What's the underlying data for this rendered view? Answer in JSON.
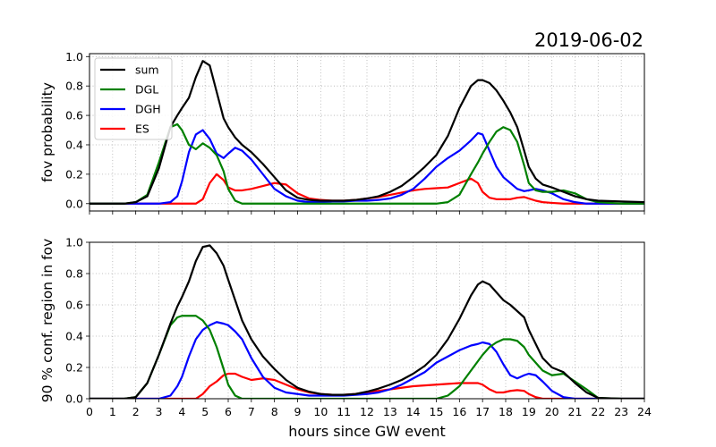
{
  "figure": {
    "date_label": "2019-06-02",
    "xlabel": "hours since GW event"
  },
  "chart_data": [
    {
      "type": "line",
      "ylabel": "fov probability",
      "xlim": [
        0,
        24
      ],
      "ylim": [
        -0.05,
        1.02
      ],
      "yticks": [
        0.0,
        0.2,
        0.4,
        0.6,
        0.8,
        1.0
      ],
      "grid": true,
      "legend": "top-left",
      "x": [
        0,
        1,
        1.5,
        2,
        2.5,
        3,
        3.5,
        3.8,
        4,
        4.3,
        4.6,
        4.9,
        5.2,
        5.5,
        5.8,
        6,
        6.3,
        6.6,
        7,
        7.5,
        8,
        8.5,
        9,
        9.5,
        10,
        10.5,
        11,
        11.5,
        12,
        12.5,
        13,
        13.5,
        14,
        14.5,
        15,
        15.5,
        16,
        16.5,
        16.8,
        17,
        17.3,
        17.6,
        17.9,
        18.2,
        18.5,
        18.8,
        19,
        19.3,
        19.6,
        20,
        20.5,
        21,
        21.5,
        22,
        23,
        24
      ],
      "series": [
        {
          "name": "sum",
          "color": "#000000",
          "values": [
            0,
            0,
            0,
            0.01,
            0.05,
            0.24,
            0.52,
            0.6,
            0.65,
            0.72,
            0.86,
            0.97,
            0.94,
            0.76,
            0.58,
            0.52,
            0.45,
            0.4,
            0.35,
            0.27,
            0.18,
            0.09,
            0.04,
            0.025,
            0.02,
            0.02,
            0.02,
            0.025,
            0.035,
            0.05,
            0.08,
            0.12,
            0.18,
            0.25,
            0.33,
            0.46,
            0.65,
            0.8,
            0.84,
            0.84,
            0.82,
            0.77,
            0.7,
            0.62,
            0.52,
            0.36,
            0.25,
            0.17,
            0.13,
            0.11,
            0.08,
            0.05,
            0.03,
            0.02,
            0.015,
            0.01
          ]
        },
        {
          "name": "DGL",
          "color": "#008000",
          "values": [
            0,
            0,
            0,
            0.01,
            0.06,
            0.28,
            0.52,
            0.54,
            0.5,
            0.4,
            0.37,
            0.41,
            0.38,
            0.33,
            0.22,
            0.1,
            0.02,
            0,
            0,
            0,
            0,
            0,
            0,
            0,
            0,
            0,
            0,
            0,
            0,
            0,
            0,
            0,
            0,
            0,
            0,
            0.01,
            0.06,
            0.2,
            0.28,
            0.34,
            0.42,
            0.49,
            0.52,
            0.5,
            0.42,
            0.26,
            0.14,
            0.09,
            0.08,
            0.08,
            0.09,
            0.07,
            0.03,
            0.01,
            0,
            0
          ]
        },
        {
          "name": "DGH",
          "color": "#0000ff",
          "values": [
            0,
            0,
            0,
            0,
            0,
            0,
            0.01,
            0.05,
            0.15,
            0.35,
            0.47,
            0.5,
            0.44,
            0.34,
            0.31,
            0.34,
            0.38,
            0.36,
            0.3,
            0.2,
            0.1,
            0.05,
            0.02,
            0.01,
            0.01,
            0.015,
            0.015,
            0.02,
            0.02,
            0.025,
            0.035,
            0.06,
            0.1,
            0.17,
            0.25,
            0.31,
            0.36,
            0.43,
            0.48,
            0.47,
            0.36,
            0.25,
            0.18,
            0.14,
            0.1,
            0.085,
            0.09,
            0.1,
            0.09,
            0.07,
            0.03,
            0.01,
            0,
            0,
            0,
            0
          ]
        },
        {
          "name": "ES",
          "color": "#ff0000",
          "values": [
            0,
            0,
            0,
            0,
            0,
            0,
            0,
            0,
            0,
            0,
            0,
            0.03,
            0.14,
            0.2,
            0.16,
            0.11,
            0.09,
            0.09,
            0.1,
            0.12,
            0.14,
            0.13,
            0.07,
            0.035,
            0.025,
            0.02,
            0.02,
            0.025,
            0.035,
            0.045,
            0.06,
            0.075,
            0.09,
            0.1,
            0.105,
            0.11,
            0.14,
            0.17,
            0.14,
            0.08,
            0.04,
            0.03,
            0.03,
            0.03,
            0.04,
            0.045,
            0.035,
            0.02,
            0.01,
            0.005,
            0,
            0,
            0,
            0,
            0,
            0
          ]
        }
      ]
    },
    {
      "type": "line",
      "ylabel": "90 % conf. region in fov",
      "xlim": [
        0,
        24
      ],
      "ylim": [
        0,
        1.0
      ],
      "yticks": [
        0.0,
        0.2,
        0.4,
        0.6,
        0.8,
        1.0
      ],
      "xticks": [
        0,
        1,
        2,
        3,
        4,
        5,
        6,
        7,
        8,
        9,
        10,
        11,
        12,
        13,
        14,
        15,
        16,
        17,
        18,
        19,
        20,
        21,
        22,
        23,
        24
      ],
      "grid": true,
      "x": [
        0,
        1,
        1.5,
        2,
        2.5,
        3,
        3.5,
        3.8,
        4,
        4.3,
        4.6,
        4.9,
        5.2,
        5.5,
        5.8,
        6,
        6.3,
        6.6,
        7,
        7.5,
        8,
        8.5,
        9,
        9.5,
        10,
        10.5,
        11,
        11.5,
        12,
        12.5,
        13,
        13.5,
        14,
        14.5,
        15,
        15.5,
        16,
        16.5,
        16.8,
        17,
        17.3,
        17.6,
        17.9,
        18.2,
        18.5,
        18.8,
        19,
        19.3,
        19.6,
        20,
        20.5,
        21,
        21.5,
        22,
        23,
        24
      ],
      "series": [
        {
          "name": "sum",
          "color": "#000000",
          "values": [
            0,
            0,
            0,
            0.01,
            0.1,
            0.28,
            0.48,
            0.59,
            0.65,
            0.75,
            0.88,
            0.97,
            0.98,
            0.93,
            0.85,
            0.76,
            0.63,
            0.5,
            0.38,
            0.27,
            0.19,
            0.12,
            0.07,
            0.045,
            0.03,
            0.025,
            0.025,
            0.03,
            0.045,
            0.065,
            0.09,
            0.12,
            0.16,
            0.21,
            0.28,
            0.38,
            0.51,
            0.66,
            0.73,
            0.75,
            0.73,
            0.68,
            0.63,
            0.6,
            0.56,
            0.52,
            0.44,
            0.35,
            0.26,
            0.2,
            0.17,
            0.1,
            0.04,
            0.005,
            0,
            0
          ]
        },
        {
          "name": "DGL",
          "color": "#008000",
          "values": [
            0,
            0,
            0,
            0.01,
            0.1,
            0.28,
            0.47,
            0.52,
            0.53,
            0.53,
            0.53,
            0.5,
            0.44,
            0.33,
            0.19,
            0.09,
            0.02,
            0,
            0,
            0,
            0,
            0,
            0,
            0,
            0,
            0,
            0,
            0,
            0,
            0,
            0,
            0,
            0,
            0,
            0,
            0.02,
            0.08,
            0.18,
            0.24,
            0.28,
            0.33,
            0.36,
            0.38,
            0.38,
            0.37,
            0.33,
            0.28,
            0.23,
            0.18,
            0.15,
            0.16,
            0.11,
            0.06,
            0.005,
            0,
            0
          ]
        },
        {
          "name": "DGH",
          "color": "#0000ff",
          "values": [
            0,
            0,
            0,
            0,
            0,
            0,
            0.02,
            0.08,
            0.14,
            0.27,
            0.38,
            0.44,
            0.47,
            0.49,
            0.48,
            0.47,
            0.43,
            0.38,
            0.26,
            0.14,
            0.07,
            0.04,
            0.03,
            0.02,
            0.02,
            0.02,
            0.02,
            0.025,
            0.03,
            0.04,
            0.06,
            0.09,
            0.13,
            0.17,
            0.23,
            0.27,
            0.31,
            0.34,
            0.35,
            0.36,
            0.35,
            0.3,
            0.22,
            0.15,
            0.13,
            0.15,
            0.16,
            0.15,
            0.11,
            0.05,
            0.01,
            0,
            0,
            0,
            0,
            0
          ]
        },
        {
          "name": "ES",
          "color": "#ff0000",
          "values": [
            0,
            0,
            0,
            0,
            0,
            0,
            0,
            0,
            0,
            0,
            0,
            0.03,
            0.08,
            0.11,
            0.15,
            0.16,
            0.16,
            0.14,
            0.12,
            0.13,
            0.12,
            0.09,
            0.06,
            0.04,
            0.03,
            0.025,
            0.025,
            0.03,
            0.04,
            0.05,
            0.06,
            0.07,
            0.08,
            0.085,
            0.09,
            0.095,
            0.1,
            0.1,
            0.1,
            0.09,
            0.06,
            0.04,
            0.04,
            0.05,
            0.055,
            0.05,
            0.03,
            0.01,
            0,
            0,
            0,
            0,
            0,
            0,
            0,
            0
          ]
        }
      ]
    }
  ]
}
